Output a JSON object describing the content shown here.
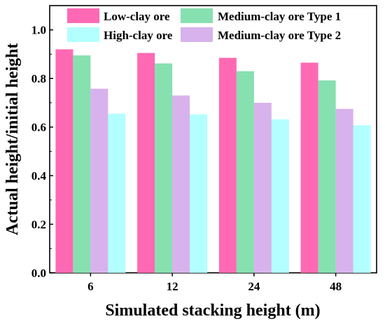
{
  "chart_data": {
    "type": "bar",
    "categories": [
      "6",
      "12",
      "24",
      "48"
    ],
    "series": [
      {
        "name": "Low-clay ore",
        "color": "#ff69b4",
        "values": [
          0.92,
          0.905,
          0.885,
          0.865
        ]
      },
      {
        "name": "Medium-clay ore Type 1",
        "color": "#86e0b0",
        "values": [
          0.895,
          0.862,
          0.83,
          0.792
        ]
      },
      {
        "name": "Medium-clay ore Type 2",
        "color": "#d8b2ec",
        "values": [
          0.758,
          0.73,
          0.7,
          0.675
        ]
      },
      {
        "name": "High-clay ore",
        "color": "#b3ffff",
        "values": [
          0.655,
          0.652,
          0.632,
          0.607
        ]
      }
    ],
    "xlabel": "Simulated stacking height (m)",
    "ylabel": "Actual height/initial height",
    "ylim": [
      0.0,
      1.1
    ],
    "yticks": [
      "0.0",
      "0.2",
      "0.4",
      "0.6",
      "0.8",
      "1.0"
    ],
    "grid": false,
    "legend_position": "top"
  }
}
